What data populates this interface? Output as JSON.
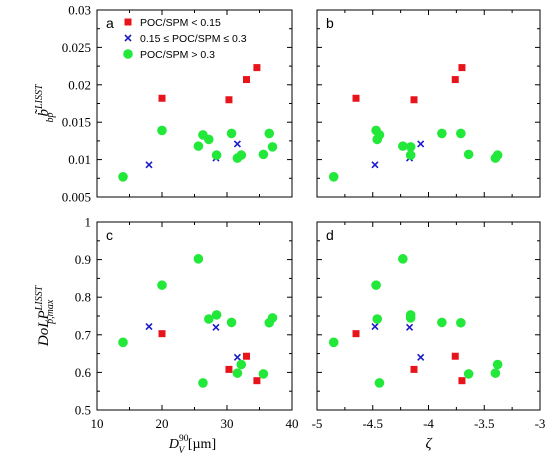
{
  "chart_data": {
    "type": "scatter",
    "panels": [
      {
        "label": "a",
        "x_key": "dv90",
        "y_key": "b",
        "xlim": [
          10,
          40
        ],
        "ylim": [
          0.005,
          0.03
        ],
        "xticks": [
          "10",
          "20",
          "30",
          "40"
        ],
        "yticks": [
          "0.005",
          "0.01",
          "0.015",
          "0.02",
          "0.025",
          "0.03"
        ],
        "ylabel": {
          "main": "b̃",
          "sub": "bp",
          "sup": "LISST"
        },
        "xlabel": "",
        "show_legend": true,
        "show_xticks": false,
        "show_yticks": true
      },
      {
        "label": "b",
        "x_key": "zeta",
        "y_key": "b",
        "xlim": [
          -5,
          -3
        ],
        "ylim": [
          0.005,
          0.03
        ],
        "xticks": [
          "-5",
          "-4.5",
          "-4",
          "-3.5",
          "-3"
        ],
        "yticks": [],
        "ylabel": {
          "main": "",
          "sub": "",
          "sup": ""
        },
        "xlabel": "",
        "show_legend": false,
        "show_xticks": false,
        "show_yticks": false
      },
      {
        "label": "c",
        "x_key": "dv90",
        "y_key": "dolp",
        "xlim": [
          10,
          40
        ],
        "ylim": [
          0.5,
          1.0
        ],
        "xticks": [
          "10",
          "20",
          "30",
          "40"
        ],
        "yticks": [
          "0.5",
          "0.6",
          "0.7",
          "0.8",
          "0.9",
          "1"
        ],
        "ylabel": {
          "main": "DoLP",
          "sub": "p,max",
          "sup": "LISST"
        },
        "xlabel": "dv90",
        "show_legend": false,
        "show_xticks": true,
        "show_yticks": true
      },
      {
        "label": "d",
        "x_key": "zeta",
        "y_key": "dolp",
        "xlim": [
          -5,
          -3
        ],
        "ylim": [
          0.5,
          1.0
        ],
        "xticks": [
          "-5",
          "-4.5",
          "-4",
          "-3.5",
          "-3"
        ],
        "yticks": [],
        "ylabel": {
          "main": "",
          "sub": "",
          "sup": ""
        },
        "xlabel": "ζ",
        "show_legend": false,
        "show_xticks": true,
        "show_yticks": false
      }
    ],
    "xlabel_dv90": {
      "main": "D",
      "sub": "V",
      "sup": "90",
      "unit": " [µm]"
    },
    "series": [
      {
        "name": "POC/SPM < 0.15",
        "marker": "square",
        "color": "#e8141c",
        "points": [
          {
            "dv90": 20.0,
            "zeta": -4.65,
            "b": 0.0182,
            "dolp": 0.703
          },
          {
            "dv90": 30.3,
            "zeta": -4.13,
            "b": 0.018,
            "dolp": 0.608
          },
          {
            "dv90": 33.0,
            "zeta": -3.76,
            "b": 0.0207,
            "dolp": 0.643
          },
          {
            "dv90": 34.6,
            "zeta": -3.7,
            "b": 0.0223,
            "dolp": 0.578
          }
        ]
      },
      {
        "name": "0.15 ≤ POC/SPM ≤ 0.3",
        "marker": "cross",
        "color": "#1c1cc8",
        "points": [
          {
            "dv90": 18.0,
            "zeta": -4.48,
            "b": 0.0093,
            "dolp": 0.722
          },
          {
            "dv90": 28.3,
            "zeta": -4.17,
            "b": 0.0102,
            "dolp": 0.72
          },
          {
            "dv90": 31.6,
            "zeta": -4.07,
            "b": 0.0121,
            "dolp": 0.64
          }
        ]
      },
      {
        "name": "POC/SPM > 0.3",
        "marker": "circle",
        "color": "#22e83a",
        "points": [
          {
            "dv90": 14.0,
            "zeta": -4.85,
            "b": 0.0077,
            "dolp": 0.68
          },
          {
            "dv90": 20.0,
            "zeta": -4.47,
            "b": 0.0139,
            "dolp": 0.832
          },
          {
            "dv90": 25.6,
            "zeta": -4.23,
            "b": 0.0118,
            "dolp": 0.902
          },
          {
            "dv90": 26.3,
            "zeta": -4.44,
            "b": 0.0133,
            "dolp": 0.572
          },
          {
            "dv90": 27.2,
            "zeta": -4.46,
            "b": 0.0127,
            "dolp": 0.742
          },
          {
            "dv90": 28.4,
            "zeta": -4.16,
            "b": 0.0106,
            "dolp": 0.753
          },
          {
            "dv90": 30.7,
            "zeta": -3.88,
            "b": 0.0135,
            "dolp": 0.733
          },
          {
            "dv90": 31.6,
            "zeta": -3.4,
            "b": 0.0102,
            "dolp": 0.598
          },
          {
            "dv90": 32.2,
            "zeta": -3.38,
            "b": 0.0106,
            "dolp": 0.621
          },
          {
            "dv90": 35.6,
            "zeta": -3.64,
            "b": 0.0107,
            "dolp": 0.596
          },
          {
            "dv90": 36.5,
            "zeta": -3.71,
            "b": 0.0135,
            "dolp": 0.732
          },
          {
            "dv90": 37.0,
            "zeta": -4.16,
            "b": 0.0117,
            "dolp": 0.745
          }
        ]
      }
    ]
  }
}
